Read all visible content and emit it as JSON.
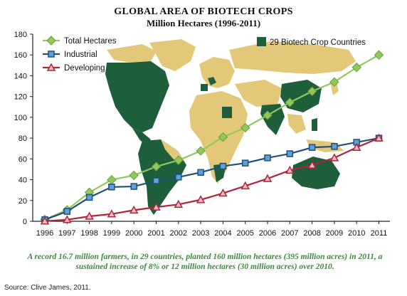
{
  "chart_data": {
    "type": "line",
    "title": "GLOBAL AREA OF BIOTECH CROPS",
    "subtitle": "Million Hectares (1996-2011)",
    "xlabel": "",
    "ylabel": "",
    "ylim": [
      0,
      180
    ],
    "yticks": [
      "0",
      "20",
      "40",
      "60",
      "80",
      "100",
      "120",
      "140",
      "160",
      "180"
    ],
    "categories": [
      "1996",
      "1997",
      "1998",
      "1999",
      "2000",
      "2001",
      "2002",
      "2003",
      "2004",
      "2005",
      "2006",
      "2007",
      "2008",
      "2009",
      "2010",
      "2011"
    ],
    "series": [
      {
        "name": "Total Hectares",
        "color": "#8fc95a",
        "marker": "diamond",
        "values": [
          1.7,
          11,
          27.8,
          39.9,
          44.2,
          52.6,
          58.7,
          67.7,
          81,
          90,
          102,
          114.3,
          125,
          134,
          148,
          160
        ]
      },
      {
        "name": "Industrial",
        "color": "#1f4f7a",
        "marker": "square",
        "values": [
          1.5,
          9.5,
          23,
          33,
          33.5,
          39,
          42.5,
          47,
          53,
          56,
          61,
          65,
          71,
          72,
          76,
          80
        ]
      },
      {
        "name": "Developing",
        "color": "#b0243a",
        "marker": "triangle",
        "values": [
          0.2,
          1.5,
          4.8,
          7,
          10.7,
          13.6,
          16.2,
          20.7,
          27,
          34,
          41,
          49,
          54,
          61,
          71,
          80
        ]
      }
    ],
    "legend_position": "top-left",
    "grid": false
  },
  "map_legend": {
    "label": "29 Biotech Crop Countries",
    "color": "#1e5e3a"
  },
  "map_colors": {
    "land": "#e2c878",
    "biotech": "#1e5e3a"
  },
  "caption": "A record 16.7 million farmers, in 29 countries, planted 160 million hectares (395 million acres) in 2011, a sustained increase of 8% or 12 million hectares (30 million acres) over 2010.",
  "source": "Source: Clive James, 2011."
}
